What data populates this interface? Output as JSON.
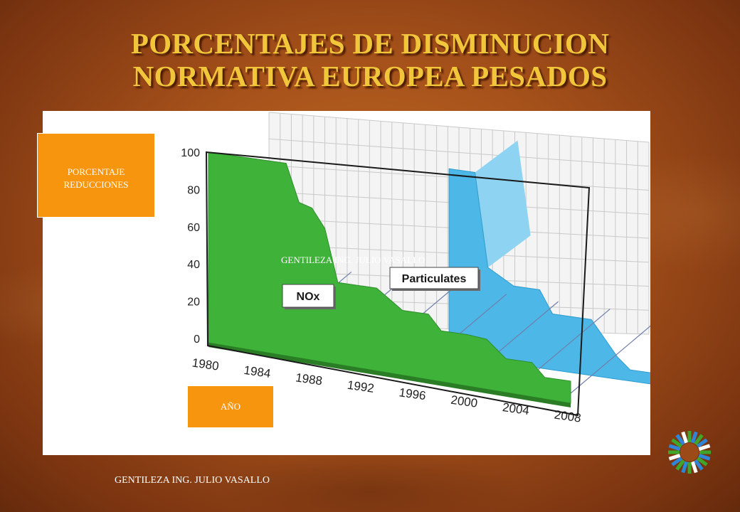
{
  "slide": {
    "title_line1": "PORCENTAJES DE DISMINUCION",
    "title_line2": "NORMATIVA EUROPEA PESADOS",
    "ylabel_box_line1": "PORCENTAJE",
    "ylabel_box_line2": "REDUCCIONES",
    "xlabel_box": "AÑO",
    "watermark": "GENTILEZA ING. JULIO VASALLO",
    "credit": "GENTILEZA ING. JULIO VASALLO"
  },
  "colors": {
    "background": "#a4501a",
    "title": "#f2c63a",
    "label_box": "#f7950f",
    "nox": "#3fb23a",
    "particulates": "#4db8e8",
    "particulates_light": "#8fd3f2",
    "grid": "#c9c9c9"
  },
  "chart_data": {
    "type": "area",
    "x": [
      "1980",
      "1984",
      "1988",
      "1992",
      "1996",
      "2000",
      "2004",
      "2008"
    ],
    "yticks": [
      "0",
      "20",
      "40",
      "60",
      "80",
      "100"
    ],
    "ylim": [
      0,
      100
    ],
    "grid": true,
    "series": [
      {
        "name": "NOx",
        "points": [
          [
            1980,
            100
          ],
          [
            1986,
            100
          ],
          [
            1987,
            80
          ],
          [
            1988,
            78
          ],
          [
            1989,
            68
          ],
          [
            1990,
            40
          ],
          [
            1993,
            40
          ],
          [
            1995,
            30
          ],
          [
            1997,
            30
          ],
          [
            1998,
            22
          ],
          [
            2000,
            22
          ],
          [
            2001.5,
            21
          ],
          [
            2003,
            12
          ],
          [
            2005,
            12
          ],
          [
            2006,
            5
          ],
          [
            2008,
            5
          ]
        ]
      },
      {
        "name": "Particulates",
        "points": [
          [
            1992,
            100
          ],
          [
            1994,
            100
          ],
          [
            1995,
            50
          ],
          [
            1997,
            42
          ],
          [
            1999,
            42
          ],
          [
            2000,
            30
          ],
          [
            2003,
            30
          ],
          [
            2005,
            12
          ],
          [
            2006,
            6
          ],
          [
            2008,
            6
          ]
        ]
      }
    ]
  }
}
